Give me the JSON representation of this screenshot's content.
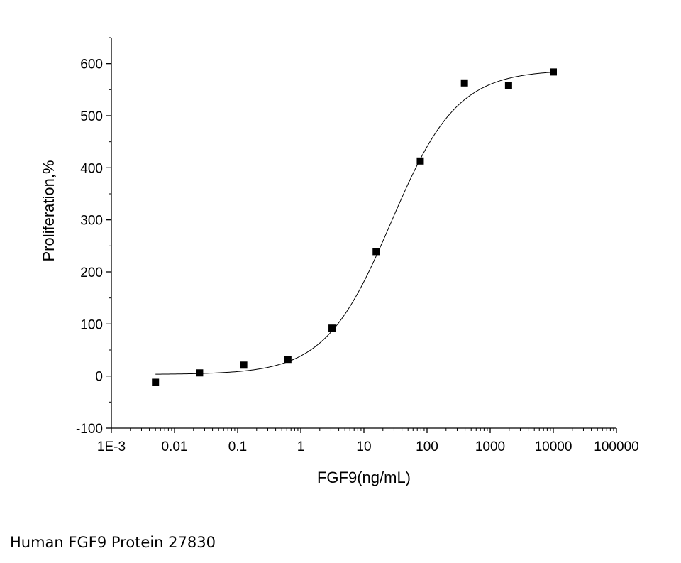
{
  "caption": "Human FGF9 Protein 27830",
  "chart_data": {
    "type": "scatter",
    "title": "",
    "xlabel": "FGF9(ng/mL)",
    "ylabel": "Proliferation,%",
    "x_scale": "log",
    "xlim": [
      0.001,
      100000
    ],
    "ylim": [
      -100,
      650
    ],
    "x_ticks": [
      0.001,
      0.01,
      0.1,
      1,
      10,
      100,
      1000,
      10000,
      100000
    ],
    "x_tick_labels": [
      "1E-3",
      "0.01",
      "0.1",
      "1",
      "10",
      "100",
      "1000",
      "10000",
      "100000"
    ],
    "y_ticks": [
      -100,
      0,
      100,
      200,
      300,
      400,
      500,
      600
    ],
    "y_tick_labels": [
      "-100",
      "0",
      "100",
      "200",
      "300",
      "400",
      "500",
      "600"
    ],
    "grid": false,
    "legend": "none",
    "series": [
      {
        "x": [
          0.005,
          0.025,
          0.125,
          0.625,
          3.125,
          15.625,
          78.125,
          390.625,
          1953.125,
          10000
        ],
        "y": [
          -12,
          6,
          21,
          32,
          92,
          239,
          413,
          563,
          558,
          584
        ],
        "marker": "square"
      }
    ],
    "fit_curve": {
      "model": "4PL",
      "bottom": 3,
      "top": 588,
      "ec50": 27,
      "hill": 0.83,
      "x_range": [
        0.005,
        10000
      ]
    }
  }
}
